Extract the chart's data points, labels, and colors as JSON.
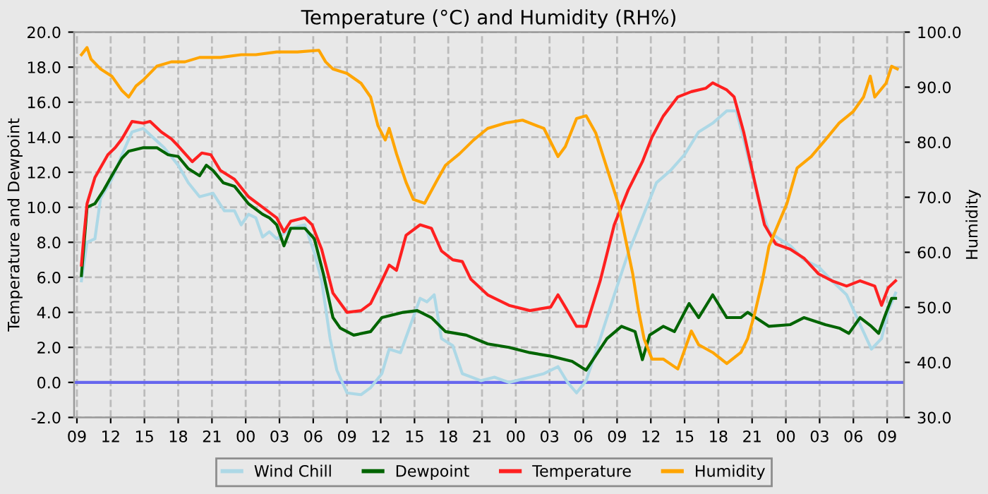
{
  "chart_data": {
    "type": "line",
    "title": "Temperature (°C) and Humidity (RH%)",
    "ylabel": "Temperature and Dewpoint",
    "y2label": "Humidity",
    "xlim": [
      8.75,
      82.5
    ],
    "ylim": [
      -2,
      20
    ],
    "y2lim": [
      30,
      100
    ],
    "xticks": [
      {
        "value": 9,
        "label": "09"
      },
      12,
      15,
      18,
      21,
      {
        "value": 24,
        "label": "00"
      },
      {
        "value": 27,
        "label": "03"
      },
      {
        "value": 30,
        "label": "06"
      },
      {
        "value": 33,
        "label": "09"
      },
      {
        "value": 36,
        "label": "12"
      },
      {
        "value": 39,
        "label": "15"
      },
      {
        "value": 42,
        "label": "18"
      },
      {
        "value": 45,
        "label": "21"
      },
      {
        "value": 48,
        "label": "00"
      },
      {
        "value": 51,
        "label": "03"
      },
      {
        "value": 54,
        "label": "06"
      },
      {
        "value": 57,
        "label": "09"
      },
      {
        "value": 60,
        "label": "12"
      },
      {
        "value": 63,
        "label": "15"
      },
      {
        "value": 66,
        "label": "18"
      },
      {
        "value": 69,
        "label": "21"
      },
      {
        "value": 72,
        "label": "00"
      },
      {
        "value": 75,
        "label": "03"
      },
      {
        "value": 78,
        "label": "06"
      },
      {
        "value": 81,
        "label": "09"
      }
    ],
    "yticks": [
      {
        "value": -2,
        "label": "-2.0"
      },
      {
        "value": 0,
        "label": "0.0"
      },
      {
        "value": 2,
        "label": "2.0"
      },
      {
        "value": 4,
        "label": "4.0"
      },
      {
        "value": 6,
        "label": "6.0"
      },
      {
        "value": 8,
        "label": "8.0"
      },
      {
        "value": 10,
        "label": "10.0"
      },
      {
        "value": 12,
        "label": "12.0"
      },
      {
        "value": 14,
        "label": "14.0"
      },
      {
        "value": 16,
        "label": "16.0"
      },
      {
        "value": 18,
        "label": "18.0"
      },
      {
        "value": 20,
        "label": "20.0"
      }
    ],
    "y2ticks": [
      {
        "value": 30,
        "label": "30.0"
      },
      {
        "value": 40,
        "label": "40.0"
      },
      {
        "value": 50,
        "label": "50.0"
      },
      {
        "value": 60,
        "label": "60.0"
      },
      {
        "value": 70,
        "label": "70.0"
      },
      {
        "value": 80,
        "label": "80.0"
      },
      {
        "value": 90,
        "label": "90.0"
      },
      {
        "value": 100,
        "label": "100.0"
      }
    ],
    "grid": true,
    "legend": "bottom",
    "line_style": "solid",
    "ref_lines": [
      {
        "axis": "y",
        "value": 0,
        "color": "#6666ee"
      }
    ],
    "series": [
      {
        "name": "Wind Chill",
        "color": "#add8e6",
        "x": [
          9.4,
          9.9,
          10.6,
          11.1,
          12.1,
          13,
          13.9,
          14.9,
          15.9,
          16.75,
          18,
          18.9,
          19.9,
          21.1,
          22.1,
          23,
          23.6,
          24.25,
          24.9,
          25.5,
          26.1,
          26.75,
          28,
          29.25,
          30.1,
          30.75,
          31.5,
          32.1,
          33,
          34.25,
          35.1,
          36.1,
          36.75,
          37.75,
          38.6,
          39.5,
          40.1,
          40.75,
          41.4,
          42.4,
          43.25,
          44.9,
          46.1,
          47.4,
          49.25,
          50.5,
          51.75,
          52.6,
          53.4,
          54.25,
          55.5,
          56.75,
          58,
          59.25,
          60.5,
          61.75,
          63,
          64.25,
          65.5,
          66.75,
          67.6,
          68.25,
          68.9,
          69.5,
          70.5,
          71.4,
          72.4,
          73.6,
          74.9,
          76.1,
          77.4,
          78.6,
          79.6,
          80.5,
          81.1,
          81.75
        ],
        "values": [
          5.8,
          8.0,
          8.2,
          10.5,
          11.6,
          13.0,
          14.3,
          14.5,
          13.9,
          13.4,
          12.4,
          11.4,
          10.6,
          10.8,
          9.8,
          9.8,
          9.0,
          9.6,
          9.4,
          8.3,
          8.6,
          8.2,
          8.8,
          9.0,
          7.4,
          5.8,
          2.5,
          0.7,
          -0.6,
          -0.7,
          -0.3,
          0.5,
          1.9,
          1.7,
          3.2,
          4.8,
          4.6,
          5.0,
          2.5,
          2.1,
          0.5,
          0.1,
          0.3,
          0.0,
          0.3,
          0.5,
          0.9,
          0.0,
          -0.6,
          0.1,
          2.5,
          5.0,
          7.4,
          9.4,
          11.4,
          12.1,
          13.0,
          14.3,
          14.8,
          15.5,
          15.5,
          13.9,
          12.2,
          10.6,
          8.6,
          8.2,
          7.8,
          7.0,
          6.6,
          5.8,
          5.0,
          3.3,
          1.9,
          2.5,
          4.1,
          5.1
        ]
      },
      {
        "name": "Dewpoint",
        "color": "#006400",
        "x": [
          9.4,
          9.9,
          10.6,
          11.4,
          12.1,
          13,
          13.6,
          14.9,
          16.1,
          17.1,
          18,
          18.9,
          19.9,
          20.5,
          21.1,
          22,
          23,
          24.25,
          25.5,
          26.1,
          26.75,
          27.4,
          28,
          29.25,
          30.1,
          30.9,
          31.75,
          32.4,
          33.6,
          35.1,
          36.1,
          38,
          39.25,
          40.5,
          41.75,
          43.6,
          45.5,
          47.4,
          49.25,
          51.1,
          53,
          54.25,
          56.1,
          57.4,
          58.6,
          59.25,
          59.9,
          61.1,
          62.1,
          63.4,
          64.25,
          65.5,
          66.75,
          68,
          68.6,
          70.5,
          72.4,
          73.6,
          75.5,
          76.75,
          77.6,
          78.6,
          79.6,
          80.25,
          80.75,
          81.4,
          81.75
        ],
        "values": [
          6.1,
          10.0,
          10.2,
          11.0,
          11.8,
          12.8,
          13.2,
          13.4,
          13.4,
          13.0,
          12.9,
          12.2,
          11.8,
          12.4,
          12.1,
          11.4,
          11.2,
          10.2,
          9.6,
          9.4,
          9.0,
          7.8,
          8.8,
          8.8,
          8.2,
          6.2,
          3.7,
          3.1,
          2.7,
          2.9,
          3.7,
          4.0,
          4.1,
          3.7,
          2.9,
          2.7,
          2.2,
          2.0,
          1.7,
          1.5,
          1.2,
          0.7,
          2.5,
          3.2,
          2.9,
          1.3,
          2.7,
          3.2,
          2.9,
          4.5,
          3.7,
          5.0,
          3.7,
          3.7,
          4.0,
          3.2,
          3.3,
          3.7,
          3.3,
          3.1,
          2.8,
          3.7,
          3.2,
          2.8,
          3.7,
          4.8,
          4.8
        ]
      },
      {
        "name": "Temperature",
        "color": "#ff2020",
        "x": [
          9.4,
          9.6,
          9.9,
          10.6,
          11.75,
          12.4,
          13,
          13.9,
          14.9,
          15.5,
          16.5,
          17.4,
          18,
          19.25,
          20.1,
          20.9,
          21.75,
          23,
          24.25,
          25.5,
          26.75,
          27.4,
          28,
          29.25,
          29.9,
          30.75,
          31.75,
          33,
          34.25,
          35.1,
          36.1,
          36.75,
          37.4,
          38.25,
          39.5,
          40.5,
          41.4,
          42.4,
          43.25,
          44,
          45.5,
          47.4,
          49.25,
          51.1,
          51.75,
          52.4,
          53.4,
          54.25,
          55.5,
          56.75,
          58,
          59.25,
          60.1,
          61.1,
          62.4,
          63.6,
          64.9,
          65.5,
          66.75,
          67.4,
          68.25,
          69.25,
          70.1,
          71.1,
          72.4,
          73.6,
          74.9,
          76.1,
          77.4,
          78.6,
          79.9,
          80.5,
          81.1,
          81.75
        ],
        "values": [
          6.7,
          8.2,
          10.2,
          11.7,
          13.0,
          13.4,
          13.9,
          14.9,
          14.8,
          14.9,
          14.3,
          13.9,
          13.5,
          12.6,
          13.1,
          13.0,
          12.1,
          11.6,
          10.6,
          10.0,
          9.4,
          8.6,
          9.2,
          9.4,
          9.0,
          7.6,
          5.1,
          4.0,
          4.1,
          4.5,
          5.8,
          6.7,
          6.4,
          8.4,
          9.0,
          8.8,
          7.5,
          7.0,
          6.9,
          5.9,
          5.0,
          4.4,
          4.1,
          4.3,
          5.0,
          4.3,
          3.2,
          3.2,
          5.8,
          9.0,
          11.0,
          12.6,
          14.0,
          15.2,
          16.3,
          16.6,
          16.8,
          17.1,
          16.7,
          16.3,
          14.3,
          11.4,
          9.0,
          7.9,
          7.6,
          7.1,
          6.2,
          5.8,
          5.5,
          5.8,
          5.5,
          4.4,
          5.4,
          5.8
        ]
      },
      {
        "name": "Humidity",
        "color": "#ffa500",
        "axis": "y2",
        "x": [
          9.4,
          9.9,
          10.25,
          11.1,
          12.1,
          13,
          13.6,
          14.25,
          14.9,
          16.1,
          17.4,
          18.6,
          19.9,
          21.75,
          23.6,
          24.9,
          26.75,
          28.6,
          30.5,
          31.1,
          31.75,
          33,
          34.25,
          35.1,
          35.75,
          36.4,
          36.75,
          37.4,
          38.25,
          38.9,
          39.9,
          40.9,
          41.75,
          43,
          44.25,
          45.5,
          47.1,
          48.6,
          50.5,
          51.75,
          52.4,
          53.4,
          54.25,
          55.1,
          56.1,
          57.1,
          57.75,
          58.4,
          58.9,
          59.4,
          60.1,
          61.1,
          62.4,
          63.6,
          64.25,
          65.5,
          66.75,
          68,
          68.6,
          69.25,
          69.9,
          70.5,
          71.4,
          72.1,
          73,
          74.25,
          75.5,
          76.75,
          78,
          78.9,
          79.5,
          79.9,
          80.9,
          81.4,
          81.9
        ],
        "values": [
          95.9,
          97.2,
          95.1,
          93.3,
          92.0,
          89.4,
          88.2,
          90.2,
          91.3,
          93.8,
          94.6,
          94.6,
          95.4,
          95.4,
          95.9,
          95.9,
          96.4,
          96.4,
          96.7,
          94.6,
          93.3,
          92.5,
          90.7,
          88.2,
          83.0,
          80.4,
          82.5,
          77.9,
          72.7,
          69.6,
          68.9,
          72.7,
          75.8,
          77.9,
          80.4,
          82.5,
          83.5,
          84.0,
          82.5,
          77.4,
          79.2,
          84.3,
          84.8,
          81.7,
          75.3,
          68.9,
          62.4,
          56.0,
          49.5,
          44.3,
          40.6,
          40.6,
          38.8,
          45.7,
          43.2,
          41.8,
          39.8,
          41.8,
          44.3,
          49.0,
          54.7,
          61.1,
          65.5,
          68.9,
          75.3,
          77.4,
          80.4,
          83.5,
          85.6,
          88.2,
          92.0,
          88.2,
          90.7,
          93.8,
          93.3
        ]
      }
    ]
  }
}
